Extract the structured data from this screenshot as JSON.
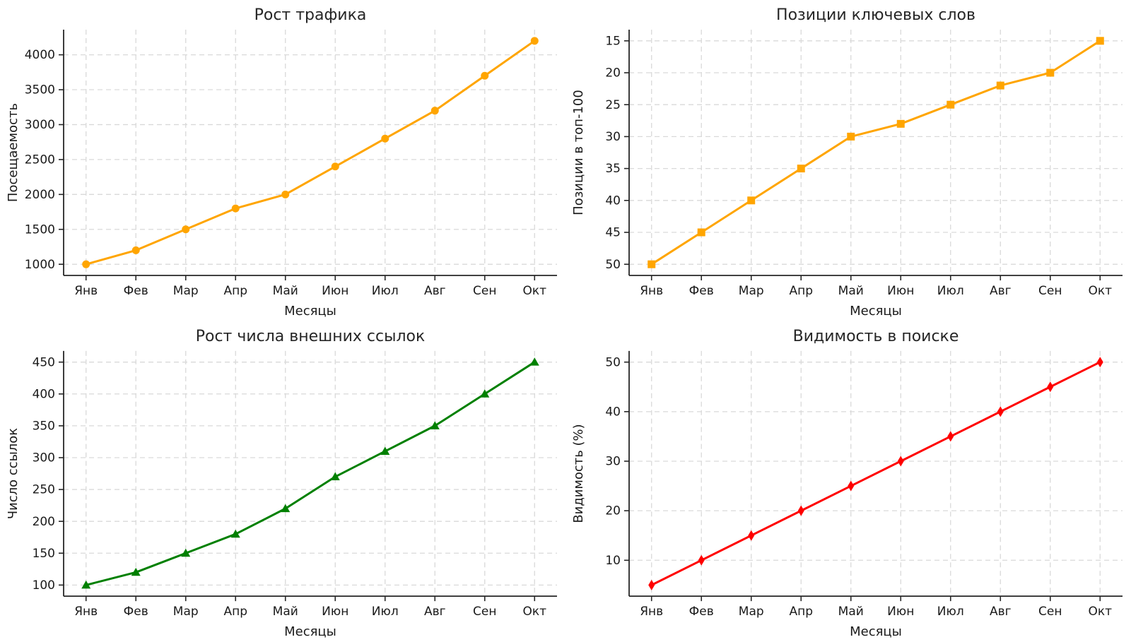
{
  "chart_data": [
    {
      "id": "traffic-growth",
      "type": "line",
      "title": "Рост трафика",
      "xlabel": "Месяцы",
      "ylabel": "Посещаемость",
      "categories": [
        "Янв",
        "Фев",
        "Мар",
        "Апр",
        "Май",
        "Июн",
        "Июл",
        "Авг",
        "Сен",
        "Окт"
      ],
      "values": [
        1000,
        1200,
        1500,
        1800,
        2000,
        2400,
        2800,
        3200,
        3700,
        4200
      ],
      "yticks": [
        1000,
        1500,
        2000,
        2500,
        3000,
        3500,
        4000
      ],
      "ylim": [
        840,
        4360
      ],
      "y_inverted": false,
      "color": "#FFA500",
      "marker": "circle",
      "grid": true,
      "legend": "none"
    },
    {
      "id": "keyword-positions",
      "type": "line",
      "title": "Позиции ключевых слов",
      "xlabel": "Месяцы",
      "ylabel": "Позиции в топ-100",
      "categories": [
        "Янв",
        "Фев",
        "Мар",
        "Апр",
        "Май",
        "Июн",
        "Июл",
        "Авг",
        "Сен",
        "Окт"
      ],
      "values": [
        50,
        45,
        40,
        35,
        30,
        28,
        25,
        22,
        20,
        15
      ],
      "yticks": [
        15,
        20,
        25,
        30,
        35,
        40,
        45,
        50
      ],
      "ylim": [
        51.75,
        13.25
      ],
      "y_inverted": true,
      "color": "#FFA500",
      "marker": "square",
      "grid": true,
      "legend": "none"
    },
    {
      "id": "backlinks-growth",
      "type": "line",
      "title": "Рост числа внешних ссылок",
      "xlabel": "Месяцы",
      "ylabel": "Число ссылок",
      "categories": [
        "Янв",
        "Фев",
        "Мар",
        "Апр",
        "Май",
        "Июн",
        "Июл",
        "Авг",
        "Сен",
        "Окт"
      ],
      "values": [
        100,
        120,
        150,
        180,
        220,
        270,
        310,
        350,
        400,
        450
      ],
      "yticks": [
        100,
        150,
        200,
        250,
        300,
        350,
        400,
        450
      ],
      "ylim": [
        82.5,
        467.5
      ],
      "y_inverted": false,
      "color": "#008000",
      "marker": "triangle-up",
      "grid": true,
      "legend": "none"
    },
    {
      "id": "search-visibility",
      "type": "line",
      "title": "Видимость в поиске",
      "xlabel": "Месяцы",
      "ylabel": "Видимость (%)",
      "categories": [
        "Янв",
        "Фев",
        "Мар",
        "Апр",
        "Май",
        "Июн",
        "Июл",
        "Авг",
        "Сен",
        "Окт"
      ],
      "values": [
        5,
        10,
        15,
        20,
        25,
        30,
        35,
        40,
        45,
        50
      ],
      "yticks": [
        10,
        20,
        30,
        40,
        50
      ],
      "ylim": [
        2.75,
        52.25
      ],
      "y_inverted": false,
      "color": "#FF0000",
      "marker": "diamond-thin",
      "grid": true,
      "legend": "none"
    }
  ]
}
